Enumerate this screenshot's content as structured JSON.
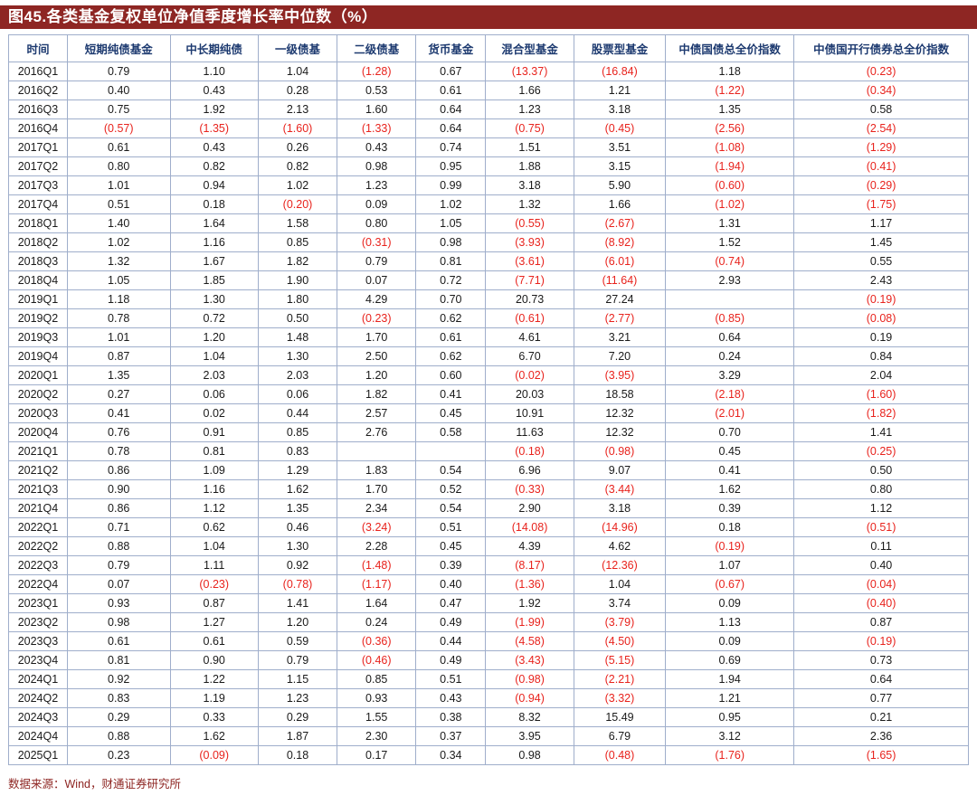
{
  "title": "图45.各类基金复权单位净值季度增长率中位数（%）",
  "source_note": "数据来源：Wind，财通证券研究所",
  "colors": {
    "title_bar_bg": "#8e2623",
    "title_text": "#ffffff",
    "header_text": "#1d3a70",
    "body_text": "#1a1a1a",
    "negative_value": "#e8231d",
    "grid_line": "#9faecb",
    "source_text": "#8e2623"
  },
  "chart_data": {
    "type": "table",
    "title": "图45.各类基金复权单位净值季度增长率中位数（%）",
    "columns": [
      "时间",
      "短期纯债基金",
      "中长期纯债",
      "一级债基",
      "二级债基",
      "货币基金",
      "混合型基金",
      "股票型基金",
      "中债国债总全价指数",
      "中债国开行债券总全价指数"
    ],
    "rows": [
      {
        "time": "2016Q1",
        "values": [
          "0.79",
          "1.10",
          "1.04",
          "(1.28)",
          "0.67",
          "(13.37)",
          "(16.84)",
          "1.18",
          "(0.23)"
        ]
      },
      {
        "time": "2016Q2",
        "values": [
          "0.40",
          "0.43",
          "0.28",
          "0.53",
          "0.61",
          "1.66",
          "1.21",
          "(1.22)",
          "(0.34)"
        ]
      },
      {
        "time": "2016Q3",
        "values": [
          "0.75",
          "1.92",
          "2.13",
          "1.60",
          "0.64",
          "1.23",
          "3.18",
          "1.35",
          "0.58"
        ]
      },
      {
        "time": "2016Q4",
        "values": [
          "(0.57)",
          "(1.35)",
          "(1.60)",
          "(1.33)",
          "0.64",
          "(0.75)",
          "(0.45)",
          "(2.56)",
          "(2.54)"
        ]
      },
      {
        "time": "2017Q1",
        "values": [
          "0.61",
          "0.43",
          "0.26",
          "0.43",
          "0.74",
          "1.51",
          "3.51",
          "(1.08)",
          "(1.29)"
        ]
      },
      {
        "time": "2017Q2",
        "values": [
          "0.80",
          "0.82",
          "0.82",
          "0.98",
          "0.95",
          "1.88",
          "3.15",
          "(1.94)",
          "(0.41)"
        ]
      },
      {
        "time": "2017Q3",
        "values": [
          "1.01",
          "0.94",
          "1.02",
          "1.23",
          "0.99",
          "3.18",
          "5.90",
          "(0.60)",
          "(0.29)"
        ]
      },
      {
        "time": "2017Q4",
        "values": [
          "0.51",
          "0.18",
          "(0.20)",
          "0.09",
          "1.02",
          "1.32",
          "1.66",
          "(1.02)",
          "(1.75)"
        ]
      },
      {
        "time": "2018Q1",
        "values": [
          "1.40",
          "1.64",
          "1.58",
          "0.80",
          "1.05",
          "(0.55)",
          "(2.67)",
          "1.31",
          "1.17"
        ]
      },
      {
        "time": "2018Q2",
        "values": [
          "1.02",
          "1.16",
          "0.85",
          "(0.31)",
          "0.98",
          "(3.93)",
          "(8.92)",
          "1.52",
          "1.45"
        ]
      },
      {
        "time": "2018Q3",
        "values": [
          "1.32",
          "1.67",
          "1.82",
          "0.79",
          "0.81",
          "(3.61)",
          "(6.01)",
          "(0.74)",
          "0.55"
        ]
      },
      {
        "time": "2018Q4",
        "values": [
          "1.05",
          "1.85",
          "1.90",
          "0.07",
          "0.72",
          "(7.71)",
          "(11.64)",
          "2.93",
          "2.43"
        ]
      },
      {
        "time": "2019Q1",
        "values": [
          "1.18",
          "1.30",
          "1.80",
          "4.29",
          "0.70",
          "20.73",
          "27.24",
          "",
          "(0.19)"
        ]
      },
      {
        "time": "2019Q2",
        "values": [
          "0.78",
          "0.72",
          "0.50",
          "(0.23)",
          "0.62",
          "(0.61)",
          "(2.77)",
          "(0.85)",
          "(0.08)"
        ]
      },
      {
        "time": "2019Q3",
        "values": [
          "1.01",
          "1.20",
          "1.48",
          "1.70",
          "0.61",
          "4.61",
          "3.21",
          "0.64",
          "0.19"
        ]
      },
      {
        "time": "2019Q4",
        "values": [
          "0.87",
          "1.04",
          "1.30",
          "2.50",
          "0.62",
          "6.70",
          "7.20",
          "0.24",
          "0.84"
        ]
      },
      {
        "time": "2020Q1",
        "values": [
          "1.35",
          "2.03",
          "2.03",
          "1.20",
          "0.60",
          "(0.02)",
          "(3.95)",
          "3.29",
          "2.04"
        ]
      },
      {
        "time": "2020Q2",
        "values": [
          "0.27",
          "0.06",
          "0.06",
          "1.82",
          "0.41",
          "20.03",
          "18.58",
          "(2.18)",
          "(1.60)"
        ]
      },
      {
        "time": "2020Q3",
        "values": [
          "0.41",
          "0.02",
          "0.44",
          "2.57",
          "0.45",
          "10.91",
          "12.32",
          "(2.01)",
          "(1.82)"
        ]
      },
      {
        "time": "2020Q4",
        "values": [
          "0.76",
          "0.91",
          "0.85",
          "2.76",
          "0.58",
          "11.63",
          "12.32",
          "0.70",
          "1.41"
        ]
      },
      {
        "time": "2021Q1",
        "values": [
          "0.78",
          "0.81",
          "0.83",
          "",
          "",
          "(0.18)",
          "(0.98)",
          "0.45",
          "(0.25)"
        ]
      },
      {
        "time": "2021Q2",
        "values": [
          "0.86",
          "1.09",
          "1.29",
          "1.83",
          "0.54",
          "6.96",
          "9.07",
          "0.41",
          "0.50"
        ]
      },
      {
        "time": "2021Q3",
        "values": [
          "0.90",
          "1.16",
          "1.62",
          "1.70",
          "0.52",
          "(0.33)",
          "(3.44)",
          "1.62",
          "0.80"
        ]
      },
      {
        "time": "2021Q4",
        "values": [
          "0.86",
          "1.12",
          "1.35",
          "2.34",
          "0.54",
          "2.90",
          "3.18",
          "0.39",
          "1.12"
        ]
      },
      {
        "time": "2022Q1",
        "values": [
          "0.71",
          "0.62",
          "0.46",
          "(3.24)",
          "0.51",
          "(14.08)",
          "(14.96)",
          "0.18",
          "(0.51)"
        ]
      },
      {
        "time": "2022Q2",
        "values": [
          "0.88",
          "1.04",
          "1.30",
          "2.28",
          "0.45",
          "4.39",
          "4.62",
          "(0.19)",
          "0.11"
        ]
      },
      {
        "time": "2022Q3",
        "values": [
          "0.79",
          "1.11",
          "0.92",
          "(1.48)",
          "0.39",
          "(8.17)",
          "(12.36)",
          "1.07",
          "0.40"
        ]
      },
      {
        "time": "2022Q4",
        "values": [
          "0.07",
          "(0.23)",
          "(0.78)",
          "(1.17)",
          "0.40",
          "(1.36)",
          "1.04",
          "(0.67)",
          "(0.04)"
        ]
      },
      {
        "time": "2023Q1",
        "values": [
          "0.93",
          "0.87",
          "1.41",
          "1.64",
          "0.47",
          "1.92",
          "3.74",
          "0.09",
          "(0.40)"
        ]
      },
      {
        "time": "2023Q2",
        "values": [
          "0.98",
          "1.27",
          "1.20",
          "0.24",
          "0.49",
          "(1.99)",
          "(3.79)",
          "1.13",
          "0.87"
        ]
      },
      {
        "time": "2023Q3",
        "values": [
          "0.61",
          "0.61",
          "0.59",
          "(0.36)",
          "0.44",
          "(4.58)",
          "(4.50)",
          "0.09",
          "(0.19)"
        ]
      },
      {
        "time": "2023Q4",
        "values": [
          "0.81",
          "0.90",
          "0.79",
          "(0.46)",
          "0.49",
          "(3.43)",
          "(5.15)",
          "0.69",
          "0.73"
        ]
      },
      {
        "time": "2024Q1",
        "values": [
          "0.92",
          "1.22",
          "1.15",
          "0.85",
          "0.51",
          "(0.98)",
          "(2.21)",
          "1.94",
          "0.64"
        ]
      },
      {
        "time": "2024Q2",
        "values": [
          "0.83",
          "1.19",
          "1.23",
          "0.93",
          "0.43",
          "(0.94)",
          "(3.32)",
          "1.21",
          "0.77"
        ]
      },
      {
        "time": "2024Q3",
        "values": [
          "0.29",
          "0.33",
          "0.29",
          "1.55",
          "0.38",
          "8.32",
          "15.49",
          "0.95",
          "0.21"
        ]
      },
      {
        "time": "2024Q4",
        "values": [
          "0.88",
          "1.62",
          "1.87",
          "2.30",
          "0.37",
          "3.95",
          "6.79",
          "3.12",
          "2.36"
        ]
      },
      {
        "time": "2025Q1",
        "values": [
          "0.23",
          "(0.09)",
          "0.18",
          "0.17",
          "0.34",
          "0.98",
          "(0.48)",
          "(1.76)",
          "(1.65)"
        ]
      }
    ]
  }
}
